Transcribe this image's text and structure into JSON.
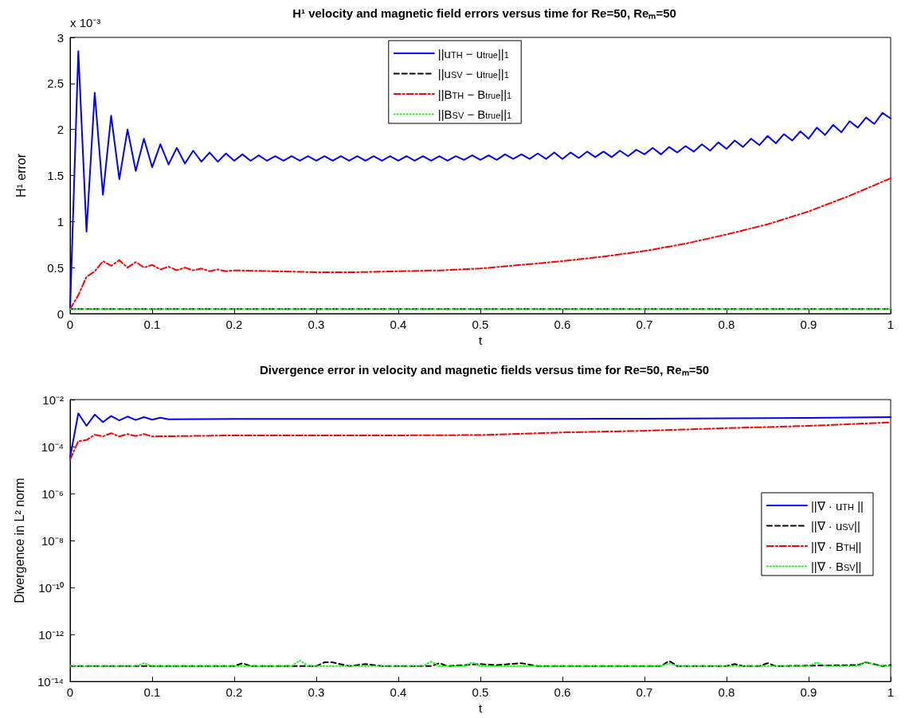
{
  "chart_data": [
    {
      "type": "line",
      "title": "H¹ velocity and magnetic field errors versus time for Re=50, Reₘ=50",
      "xlabel": "t",
      "ylabel": "H¹ error",
      "annotations": [
        "x 10⁻³"
      ],
      "xlim": [
        0,
        1
      ],
      "xticks": [
        0,
        0.1,
        0.2,
        0.3,
        0.4,
        0.5,
        0.6,
        0.7,
        0.8,
        0.9,
        1
      ],
      "ylim": [
        0,
        3
      ],
      "yticks": [
        0,
        0.5,
        1,
        1.5,
        2,
        2.5,
        3
      ],
      "grid": false,
      "legend": "top",
      "marker": "none",
      "series": [
        {
          "name": "||u$_{TH}$ − u$_{true}$||$_{1}$",
          "color": "#0000ff",
          "line_style": "solid",
          "x": [
            0,
            0.01,
            0.02,
            0.03,
            0.04,
            0.05,
            0.06,
            0.07,
            0.08,
            0.09,
            0.1,
            0.11,
            0.12,
            0.13,
            0.14,
            0.15,
            0.16,
            0.17,
            0.18,
            0.19,
            0.2,
            0.21,
            0.22,
            0.23,
            0.24,
            0.25,
            0.26,
            0.27,
            0.28,
            0.29,
            0.3,
            0.31,
            0.32,
            0.33,
            0.34,
            0.35,
            0.36,
            0.37,
            0.38,
            0.39,
            0.4,
            0.41,
            0.42,
            0.43,
            0.44,
            0.45,
            0.46,
            0.47,
            0.48,
            0.49,
            0.5,
            0.51,
            0.52,
            0.53,
            0.54,
            0.55,
            0.56,
            0.57,
            0.58,
            0.59,
            0.6,
            0.61,
            0.62,
            0.63,
            0.64,
            0.65,
            0.66,
            0.67,
            0.68,
            0.69,
            0.7,
            0.71,
            0.72,
            0.73,
            0.74,
            0.75,
            0.76,
            0.77,
            0.78,
            0.79,
            0.8,
            0.81,
            0.82,
            0.83,
            0.84,
            0.85,
            0.86,
            0.87,
            0.88,
            0.89,
            0.9,
            0.91,
            0.92,
            0.93,
            0.94,
            0.95,
            0.96,
            0.97,
            0.98,
            0.99,
            1
          ],
          "values": [
            0.05,
            2.85,
            0.89,
            2.4,
            1.29,
            2.15,
            1.46,
            2.0,
            1.55,
            1.9,
            1.59,
            1.84,
            1.62,
            1.8,
            1.63,
            1.77,
            1.65,
            1.75,
            1.65,
            1.74,
            1.66,
            1.73,
            1.66,
            1.72,
            1.66,
            1.71,
            1.66,
            1.71,
            1.66,
            1.71,
            1.66,
            1.71,
            1.66,
            1.71,
            1.66,
            1.71,
            1.66,
            1.71,
            1.66,
            1.71,
            1.66,
            1.71,
            1.66,
            1.71,
            1.66,
            1.71,
            1.66,
            1.71,
            1.67,
            1.72,
            1.67,
            1.72,
            1.67,
            1.73,
            1.68,
            1.73,
            1.68,
            1.74,
            1.68,
            1.75,
            1.68,
            1.75,
            1.69,
            1.76,
            1.7,
            1.76,
            1.7,
            1.77,
            1.71,
            1.78,
            1.73,
            1.8,
            1.73,
            1.81,
            1.75,
            1.82,
            1.76,
            1.84,
            1.77,
            1.86,
            1.79,
            1.88,
            1.81,
            1.9,
            1.83,
            1.93,
            1.85,
            1.95,
            1.88,
            1.98,
            1.9,
            2.02,
            1.94,
            2.05,
            1.97,
            2.09,
            2.02,
            2.13,
            2.06,
            2.18,
            2.12
          ]
        },
        {
          "name": "||u$_{SV}$ − u$_{true}$||$_{1}$",
          "color": "#000000",
          "line_style": "dashed",
          "x": [
            0,
            0.25,
            0.5,
            0.75,
            1
          ],
          "values": [
            0.05,
            0.05,
            0.05,
            0.05,
            0.05
          ]
        },
        {
          "name": "||B$_{TH}$ − B$_{true}$||$_{1}$",
          "color": "#ff0000",
          "line_style": "dashdot",
          "x": [
            0,
            0.01,
            0.02,
            0.03,
            0.04,
            0.05,
            0.06,
            0.07,
            0.08,
            0.09,
            0.1,
            0.11,
            0.12,
            0.13,
            0.14,
            0.15,
            0.16,
            0.17,
            0.18,
            0.19,
            0.2,
            0.25,
            0.3,
            0.35,
            0.4,
            0.45,
            0.5,
            0.55,
            0.6,
            0.65,
            0.7,
            0.75,
            0.8,
            0.85,
            0.9,
            0.95,
            1
          ],
          "values": [
            0.05,
            0.2,
            0.4,
            0.46,
            0.57,
            0.52,
            0.58,
            0.5,
            0.56,
            0.5,
            0.53,
            0.48,
            0.51,
            0.47,
            0.5,
            0.47,
            0.49,
            0.46,
            0.48,
            0.46,
            0.47,
            0.46,
            0.45,
            0.45,
            0.46,
            0.47,
            0.49,
            0.53,
            0.57,
            0.62,
            0.68,
            0.76,
            0.86,
            0.97,
            1.11,
            1.28,
            1.47
          ]
        },
        {
          "name": "||B$_{SV}$ − B$_{true}$||$_{1}$",
          "color": "#00ff00",
          "line_style": "dotted",
          "x": [
            0,
            0.25,
            0.5,
            0.75,
            1
          ],
          "values": [
            0.05,
            0.05,
            0.05,
            0.05,
            0.05
          ]
        }
      ]
    },
    {
      "type": "line",
      "title": "Divergence error in velocity and magnetic fields versus time for Re=50, Reₘ=50",
      "xlabel": "t",
      "ylabel": "Divergence in L² norm",
      "log": "y",
      "xlim": [
        0,
        1
      ],
      "xticks": [
        0,
        0.1,
        0.2,
        0.3,
        0.4,
        0.5,
        0.6,
        0.7,
        0.8,
        0.9,
        1
      ],
      "ylim": [
        1e-14,
        0.01
      ],
      "yticks": [
        {
          "value": 1e-14,
          "label": "10⁻¹⁴"
        },
        {
          "value": 1e-12,
          "label": "10⁻¹²"
        },
        {
          "value": 1e-10,
          "label": "10⁻¹⁰"
        },
        {
          "value": 1e-08,
          "label": "10⁻⁸"
        },
        {
          "value": 1e-06,
          "label": "10⁻⁶"
        },
        {
          "value": 0.0001,
          "label": "10⁻⁴"
        },
        {
          "value": 0.01,
          "label": "10⁻²"
        }
      ],
      "grid": false,
      "legend": "right",
      "marker": "none",
      "series": [
        {
          "name": "||∇ · u$_{TH}$ ||",
          "color": "#0000ff",
          "line_style": "solid",
          "x": [
            0,
            0.01,
            0.02,
            0.03,
            0.04,
            0.05,
            0.06,
            0.07,
            0.08,
            0.09,
            0.1,
            0.11,
            0.12,
            0.2,
            0.3,
            0.4,
            0.5,
            0.6,
            0.7,
            0.8,
            0.9,
            1
          ],
          "values": [
            3.5e-05,
            0.0026,
            0.00076,
            0.0023,
            0.0011,
            0.002,
            0.0013,
            0.0019,
            0.00135,
            0.0018,
            0.0014,
            0.0017,
            0.00145,
            0.0015,
            0.0015,
            0.0015,
            0.0015,
            0.0015,
            0.00155,
            0.0016,
            0.00165,
            0.0018
          ]
        },
        {
          "name": "||∇ · u$_{SV}$||",
          "color": "#000000",
          "line_style": "dashed",
          "x": [
            0,
            0.2,
            0.21,
            0.22,
            0.3,
            0.31,
            0.32,
            0.34,
            0.36,
            0.38,
            0.44,
            0.45,
            0.46,
            0.5,
            0.52,
            0.55,
            0.57,
            0.72,
            0.73,
            0.74,
            0.8,
            0.81,
            0.82,
            0.84,
            0.85,
            0.86,
            0.96,
            0.97,
            0.99,
            1
          ],
          "values": [
            4.5e-14,
            4.5e-14,
            6e-14,
            4.5e-14,
            4.5e-14,
            6.5e-14,
            6.5e-14,
            4.5e-14,
            5.5e-14,
            4.5e-14,
            4.5e-14,
            6e-14,
            4.5e-14,
            5.5e-14,
            5e-14,
            6e-14,
            4.5e-14,
            4.5e-14,
            7.5e-14,
            4.5e-14,
            4.5e-14,
            5.5e-14,
            4.5e-14,
            4.5e-14,
            6e-14,
            4.5e-14,
            5e-14,
            6.5e-14,
            4.5e-14,
            5e-14
          ]
        },
        {
          "name": "||∇ · B$_{TH}$||",
          "color": "#ff0000",
          "line_style": "dashdot",
          "x": [
            0,
            0.01,
            0.02,
            0.03,
            0.04,
            0.05,
            0.06,
            0.07,
            0.08,
            0.09,
            0.1,
            0.2,
            0.3,
            0.4,
            0.5,
            0.6,
            0.7,
            0.8,
            0.9,
            1
          ],
          "values": [
            2.8e-05,
            0.00017,
            0.00019,
            0.00032,
            0.00027,
            0.00037,
            0.00027,
            0.00034,
            0.00028,
            0.00034,
            0.00027,
            0.0003,
            0.0003,
            0.0003,
            0.00031,
            0.0004,
            0.00047,
            0.00061,
            0.00076,
            0.00107
          ]
        },
        {
          "name": "||∇ · B$_{SV}$||",
          "color": "#00ff00",
          "line_style": "dotted",
          "x": [
            0,
            0.08,
            0.09,
            0.1,
            0.27,
            0.28,
            0.29,
            0.43,
            0.44,
            0.45,
            0.48,
            0.49,
            0.5,
            0.72,
            0.73,
            0.74,
            0.9,
            0.91,
            0.92,
            0.96,
            0.97,
            0.98,
            1
          ],
          "values": [
            4.5e-14,
            4.5e-14,
            6e-14,
            4.5e-14,
            4.5e-14,
            8e-14,
            4.5e-14,
            4.5e-14,
            7e-14,
            4.5e-14,
            4.5e-14,
            6.5e-14,
            4.5e-14,
            4.5e-14,
            6e-14,
            4.5e-14,
            4.5e-14,
            6.5e-14,
            4.5e-14,
            4.5e-14,
            7e-14,
            5e-14,
            4.5e-14
          ]
        }
      ]
    }
  ]
}
